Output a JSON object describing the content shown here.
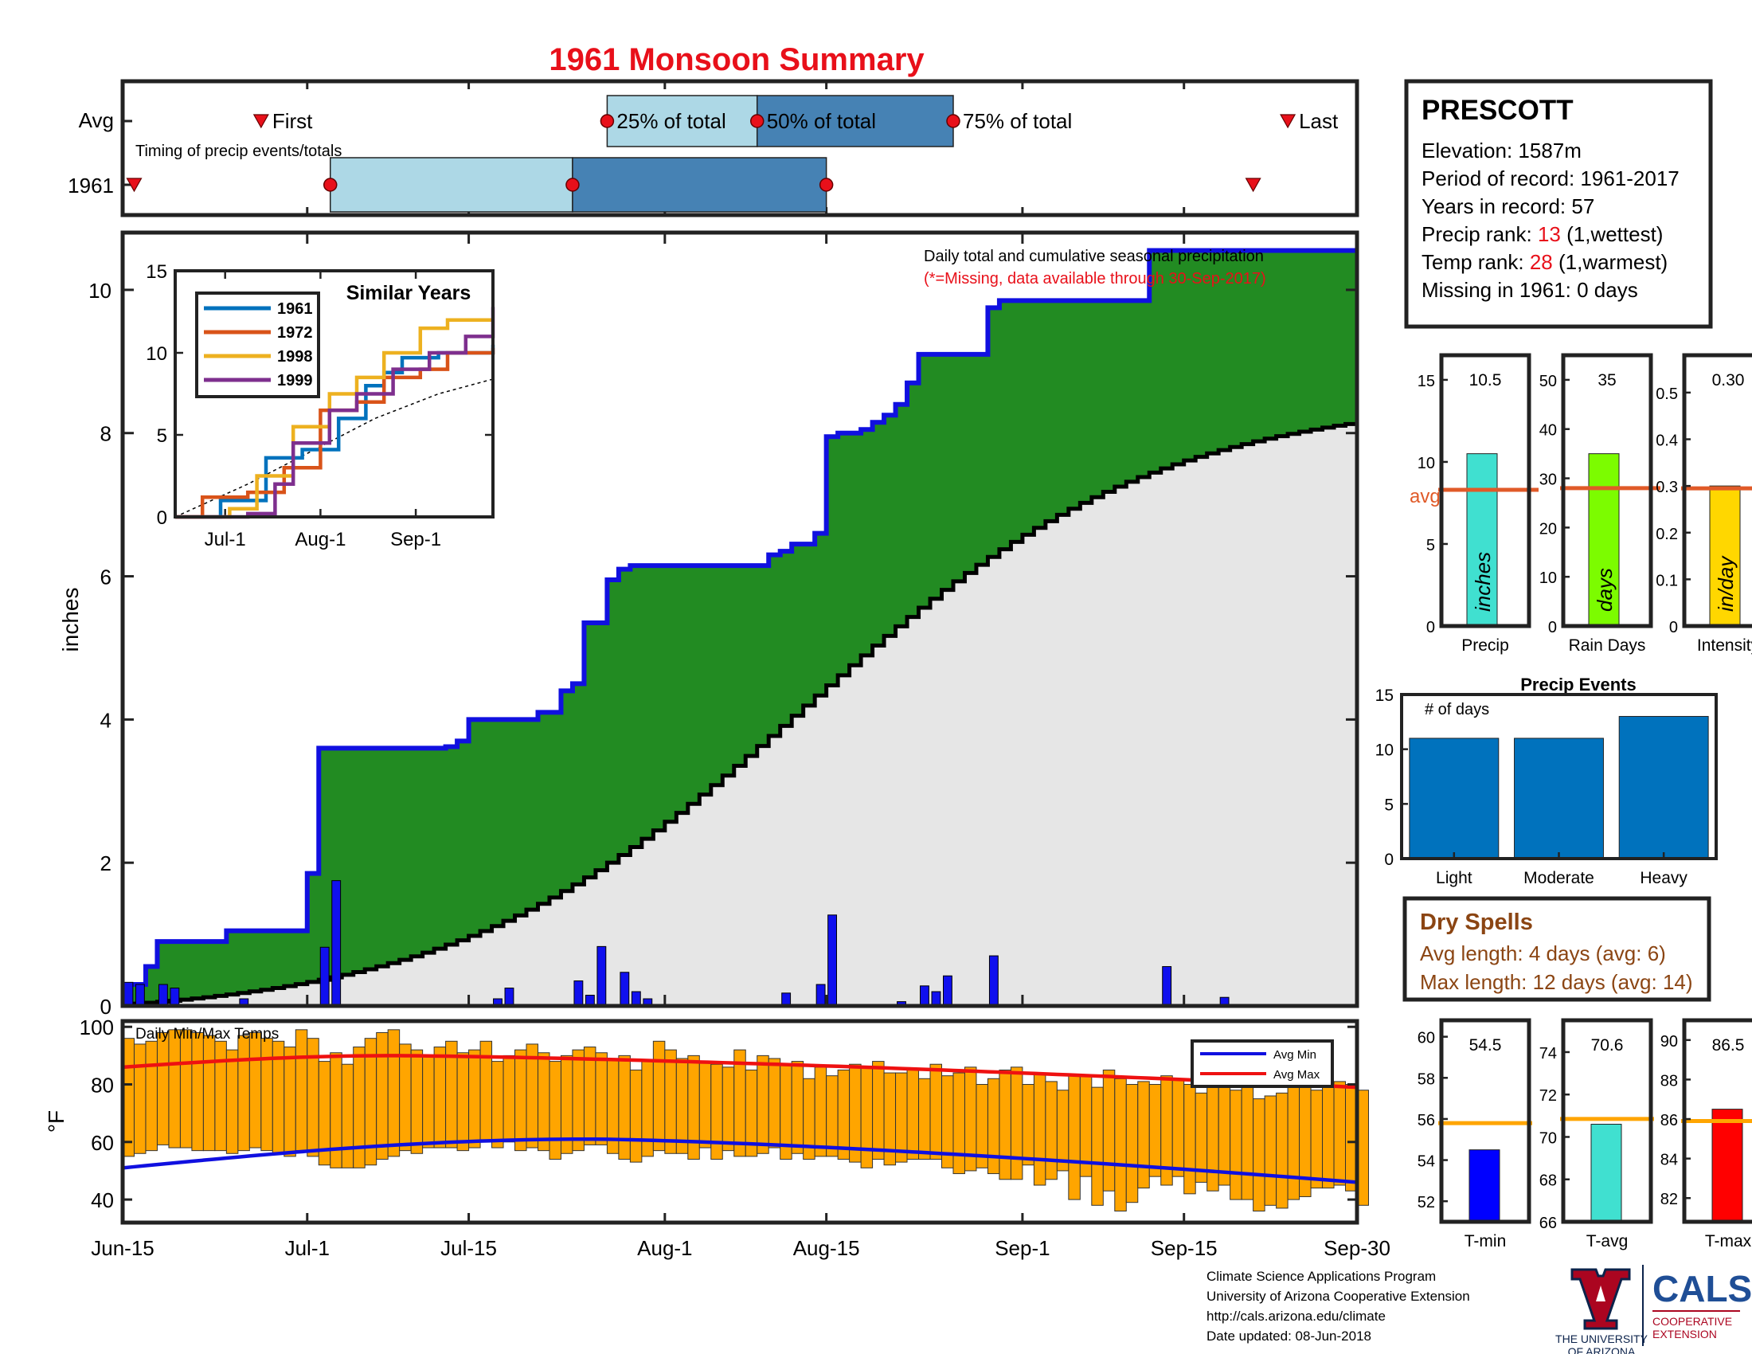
{
  "title": "1961 Monsoon Summary",
  "timing": {
    "row_labels": [
      "Avg",
      "1961"
    ],
    "caption": "Timing of precip events/totals",
    "first_label": "First",
    "last_label": "Last",
    "q25_label": "25% of total",
    "q50_label": "50% of total",
    "q75_label": "75% of total",
    "avg": {
      "first": "Jun-27",
      "q25": "Jul-27",
      "q50": "Aug-9",
      "q75": "Aug-26",
      "last": "Sep-24"
    },
    "year": {
      "first": "Jun-16",
      "q25": "Jul-3",
      "q50": "Jul-24",
      "q75": "Aug-15",
      "last": "Sep-21"
    }
  },
  "station": {
    "name": "PRESCOTT",
    "elevation": "Elevation: 1587m",
    "period": "Period of record: 1961-2017",
    "years": "Years in record: 57",
    "precip_rank_prefix": "Precip rank: ",
    "precip_rank_value": "13",
    "precip_rank_suffix": " (1,wettest)",
    "temp_rank_prefix": "Temp rank: ",
    "temp_rank_value": "28",
    "temp_rank_suffix": " (1,warmest)",
    "missing": "Missing in 1961: 0 days"
  },
  "dry_spells": {
    "title": "Dry Spells",
    "avg_length": "Avg length: 4 days (avg: 6)",
    "max_length": "Max length: 12 days (avg: 14)"
  },
  "footer": {
    "line1": "Climate Science Applications Program",
    "line2": "University of Arizona Cooperative Extension",
    "line3": "http://cals.arizona.edu/climate",
    "line4": " Date updated: 08-Jun-2018"
  },
  "logos": {
    "ua_line1": "THE UNIVERSITY",
    "ua_line2": "OF ARIZONA",
    "cals": "CALS",
    "cals_line1": "COOPERATIVE",
    "cals_line2": "EXTENSION"
  },
  "colors": {
    "title_red": "#e8101a",
    "green": "#228b22",
    "blue": "#1010e0",
    "light_gray": "#e6e6e6",
    "orange_bar": "#ffa500",
    "avg_line": "#e05a28",
    "light_blue": "#add8e6",
    "steel_blue": "#4682b4",
    "dry_brown": "#8b4513"
  },
  "chart_data": [
    {
      "type": "area",
      "name": "cumulative_precip",
      "annotation": "Daily total and cumulative seasonal precipitation",
      "missing_note": "(*=Missing, data available through 30-Sep-2017)",
      "ylabel": "inches",
      "ylim": [
        0,
        10.8
      ],
      "yticks": [
        0,
        2,
        4,
        6,
        8,
        10
      ],
      "xticks": [
        "Jun-15",
        "Jul-1",
        "Jul-15",
        "Aug-1",
        "Aug-15",
        "Sep-1",
        "Sep-15",
        "Sep-30"
      ],
      "xtick_days": [
        0,
        16,
        30,
        47,
        61,
        78,
        92,
        107
      ],
      "cumulative_steps": [
        [
          0,
          0.3
        ],
        [
          1,
          0.3
        ],
        [
          2,
          0.55
        ],
        [
          3,
          0.9
        ],
        [
          9,
          1.05
        ],
        [
          16,
          1.85
        ],
        [
          17,
          3.6
        ],
        [
          28,
          3.62
        ],
        [
          29,
          3.7
        ],
        [
          30,
          4.0
        ],
        [
          36,
          4.1
        ],
        [
          38,
          4.4
        ],
        [
          39,
          4.5
        ],
        [
          40,
          5.35
        ],
        [
          42,
          5.95
        ],
        [
          43,
          6.1
        ],
        [
          44,
          6.15
        ],
        [
          56,
          6.3
        ],
        [
          57,
          6.35
        ],
        [
          58,
          6.45
        ],
        [
          60,
          6.6
        ],
        [
          61,
          7.95
        ],
        [
          62,
          8.0
        ],
        [
          64,
          8.05
        ],
        [
          65,
          8.15
        ],
        [
          66,
          8.25
        ],
        [
          67,
          8.4
        ],
        [
          68,
          8.7
        ],
        [
          69,
          9.1
        ],
        [
          75,
          9.75
        ],
        [
          76,
          9.85
        ],
        [
          89,
          10.55
        ],
        [
          107,
          10.55
        ]
      ],
      "avg_cumulative_start": 0.02,
      "avg_cumulative_end": 8.15,
      "daily_precip": [
        [
          0,
          0.33
        ],
        [
          1,
          0.3
        ],
        [
          3,
          0.3
        ],
        [
          4,
          0.25
        ],
        [
          10,
          0.1
        ],
        [
          17,
          0.82
        ],
        [
          18,
          1.75
        ],
        [
          32,
          0.1
        ],
        [
          33,
          0.25
        ],
        [
          39,
          0.35
        ],
        [
          40,
          0.15
        ],
        [
          41,
          0.83
        ],
        [
          43,
          0.47
        ],
        [
          44,
          0.2
        ],
        [
          45,
          0.1
        ],
        [
          57,
          0.18
        ],
        [
          60,
          0.3
        ],
        [
          61,
          1.27
        ],
        [
          67,
          0.06
        ],
        [
          69,
          0.28
        ],
        [
          70,
          0.2
        ],
        [
          71,
          0.42
        ],
        [
          75,
          0.7
        ],
        [
          90,
          0.55
        ],
        [
          95,
          0.12
        ]
      ]
    },
    {
      "type": "line",
      "name": "similar_years_inset",
      "title": "Similar Years",
      "ylim": [
        0,
        15
      ],
      "yticks": [
        0,
        5,
        10,
        15
      ],
      "xticks": [
        "Jul-1",
        "Aug-1",
        "Sep-1"
      ],
      "series": [
        {
          "name": "1961",
          "color": "#0072bd",
          "points": [
            [
              0,
              0
            ],
            [
              0.5,
              1
            ],
            [
              1,
              3.6
            ],
            [
              1.4,
              4.1
            ],
            [
              1.8,
              6.0
            ],
            [
              2.1,
              8.0
            ],
            [
              2.3,
              8.8
            ],
            [
              2.5,
              9.7
            ],
            [
              2.9,
              10.0
            ],
            [
              3.5,
              10.5
            ]
          ]
        },
        {
          "name": "1972",
          "color": "#d95319",
          "points": [
            [
              0,
              0
            ],
            [
              0.3,
              1.2
            ],
            [
              0.8,
              1.5
            ],
            [
              1.2,
              3.0
            ],
            [
              1.6,
              6.5
            ],
            [
              2.0,
              7.0
            ],
            [
              2.3,
              8.5
            ],
            [
              2.7,
              9.0
            ],
            [
              3.0,
              10.0
            ],
            [
              3.5,
              10.3
            ]
          ]
        },
        {
          "name": "1998",
          "color": "#edb120",
          "points": [
            [
              0,
              0
            ],
            [
              0.6,
              0.5
            ],
            [
              0.9,
              2.5
            ],
            [
              1.3,
              5.5
            ],
            [
              1.7,
              7.5
            ],
            [
              2.0,
              8.5
            ],
            [
              2.3,
              10.0
            ],
            [
              2.7,
              11.5
            ],
            [
              3.0,
              12.0
            ],
            [
              3.5,
              12.0
            ]
          ]
        },
        {
          "name": "1999",
          "color": "#7e2f8e",
          "points": [
            [
              0,
              0
            ],
            [
              0.8,
              0.2
            ],
            [
              1.1,
              2.0
            ],
            [
              1.3,
              4.5
            ],
            [
              1.7,
              6.5
            ],
            [
              2.0,
              7.5
            ],
            [
              2.4,
              9.0
            ],
            [
              2.8,
              10.0
            ],
            [
              3.2,
              11.0
            ],
            [
              3.5,
              12.8
            ]
          ]
        }
      ],
      "avg_line": [
        [
          0,
          0
        ],
        [
          0.8,
          2.0
        ],
        [
          1.5,
          4.0
        ],
        [
          2.2,
          6.0
        ],
        [
          2.9,
          7.5
        ],
        [
          3.5,
          8.4
        ]
      ]
    },
    {
      "type": "bar",
      "name": "daily_temps",
      "title": "Daily Min/Max Temps",
      "ylabel": "°F",
      "ylim": [
        32,
        102
      ],
      "yticks": [
        40,
        60,
        80,
        100
      ],
      "legend": [
        "Avg Min",
        "Avg Max"
      ],
      "legend_position": "top-right",
      "avg_min": {
        "start": 51,
        "peak": 61,
        "end": 46
      },
      "avg_max": {
        "start": 86,
        "peak": 90,
        "end": 79
      },
      "daily_max_pattern": [
        96,
        94,
        95,
        98,
        99,
        99,
        98,
        97,
        95,
        92,
        97,
        98,
        96,
        95,
        93,
        99,
        96,
        88,
        91,
        87,
        93,
        96,
        98,
        99,
        94,
        92,
        90,
        93,
        95,
        91,
        92,
        95,
        88,
        90,
        92,
        94,
        91,
        88,
        90,
        92,
        93,
        91,
        89,
        90,
        85,
        88,
        95,
        92,
        89,
        90,
        88,
        87,
        86,
        92,
        85,
        90,
        89,
        87,
        88,
        82,
        86,
        83,
        85,
        87,
        86,
        88,
        84,
        84,
        85,
        82,
        87,
        83,
        84,
        86,
        80,
        82,
        85,
        86,
        80,
        84,
        81,
        78,
        83,
        83,
        79,
        85,
        82,
        80,
        81,
        80,
        83,
        82,
        80,
        77,
        80,
        79,
        78,
        79,
        75,
        76,
        77,
        82,
        80,
        78,
        79,
        81,
        80,
        78
      ],
      "daily_min_pattern": [
        55,
        56,
        57,
        59,
        58,
        58,
        57,
        57,
        57,
        56,
        57,
        58,
        57,
        56,
        55,
        57,
        55,
        52,
        51,
        51,
        51,
        52,
        54,
        55,
        57,
        56,
        58,
        58,
        58,
        57,
        58,
        60,
        58,
        60,
        57,
        58,
        57,
        54,
        56,
        57,
        59,
        59,
        56,
        54,
        53,
        55,
        57,
        56,
        56,
        54,
        58,
        54,
        57,
        55,
        55,
        56,
        58,
        54,
        56,
        54,
        55,
        55,
        54,
        53,
        51,
        54,
        52,
        53,
        54,
        54,
        54,
        51,
        49,
        50,
        51,
        49,
        47,
        47,
        52,
        45,
        47,
        50,
        40,
        48,
        38,
        43,
        36,
        39,
        44,
        48,
        45,
        48,
        42,
        46,
        43,
        45,
        40,
        40,
        36,
        38,
        37,
        40,
        41,
        44,
        44,
        45,
        43,
        38
      ]
    },
    {
      "type": "bar",
      "name": "season_totals",
      "panels": [
        {
          "label": "Precip",
          "unit": "inches",
          "value": 10.5,
          "value_text": "10.5",
          "avg": 8.3,
          "avg_text": "avg",
          "ylim": [
            0,
            16.5
          ],
          "yticks": [
            0,
            5,
            10,
            15
          ],
          "color": "#40e0d0"
        },
        {
          "label": "Rain Days",
          "unit": "days",
          "value": 35,
          "value_text": "35",
          "avg": 28,
          "ylim": [
            0,
            55
          ],
          "yticks": [
            0,
            10,
            20,
            30,
            40,
            50
          ],
          "color": "#7cfc00"
        },
        {
          "label": "Intensity",
          "unit": "in/day",
          "value": 0.3,
          "value_text": "0.30",
          "avg": 0.295,
          "ylim": [
            0,
            0.58
          ],
          "yticks": [
            0,
            0.1,
            0.2,
            0.3,
            0.4,
            0.5
          ],
          "color": "#ffd700"
        }
      ]
    },
    {
      "type": "bar",
      "name": "precip_events",
      "title": "Precip Events",
      "ylabel_note": "# of days",
      "categories": [
        "Light",
        "Moderate",
        "Heavy"
      ],
      "values": [
        11,
        11,
        13
      ],
      "ylim": [
        0,
        15
      ],
      "yticks": [
        0,
        5,
        10,
        15
      ],
      "color": "#0072bd"
    },
    {
      "type": "bar",
      "name": "temp_summary",
      "panels": [
        {
          "label": "T-min",
          "value": 54.5,
          "value_text": "54.5",
          "avg": 55.8,
          "ylim": [
            51,
            60.8
          ],
          "yticks": [
            52,
            54,
            56,
            58,
            60
          ],
          "color": "#0000ff"
        },
        {
          "label": "T-avg",
          "value": 70.6,
          "value_text": "70.6",
          "avg": 70.85,
          "ylim": [
            66,
            75.5
          ],
          "yticks": [
            66,
            68,
            70,
            72,
            74
          ],
          "color": "#40e0d0"
        },
        {
          "label": "T-max",
          "value": 86.5,
          "value_text": "86.5",
          "avg": 85.9,
          "ylim": [
            80.8,
            91
          ],
          "yticks": [
            82,
            84,
            86,
            88,
            90
          ],
          "color": "#ff0000"
        }
      ]
    }
  ]
}
